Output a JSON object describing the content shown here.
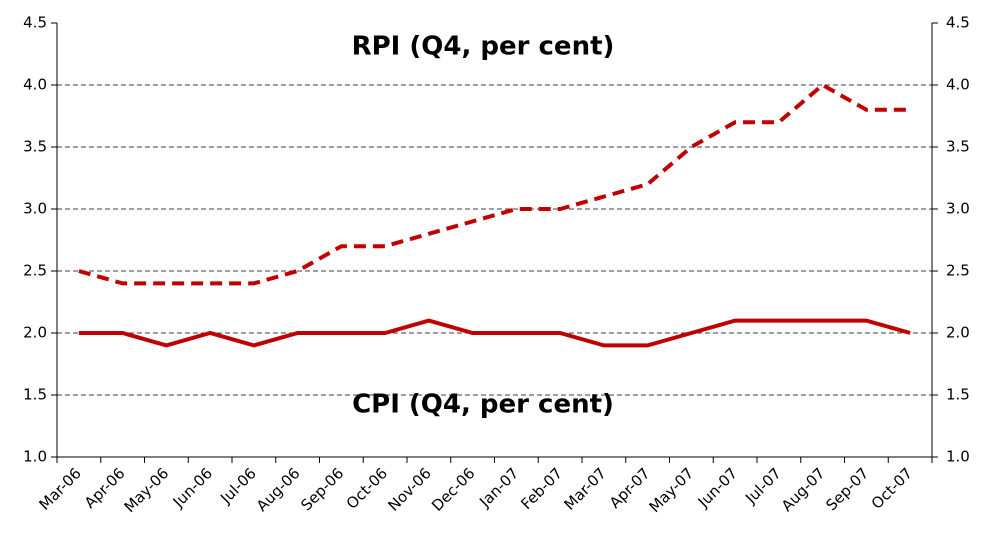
{
  "chart_data": {
    "type": "line",
    "annotations": [
      "RPI (Q4, per cent)",
      "CPI (Q4, per cent)"
    ],
    "categories": [
      "Mar-06",
      "Apr-06",
      "May-06",
      "Jun-06",
      "Jul-06",
      "Aug-06",
      "Sep-06",
      "Oct-06",
      "Nov-06",
      "Dec-06",
      "Jan-07",
      "Feb-07",
      "Mar-07",
      "Apr-07",
      "May-07",
      "Jun-07",
      "Jul-07",
      "Aug-07",
      "Sep-07",
      "Oct-07"
    ],
    "series": [
      {
        "color": "#c00000",
        "dashed": true,
        "values": [
          2.5,
          2.4,
          2.4,
          2.4,
          2.4,
          2.5,
          2.7,
          2.7,
          2.8,
          2.9,
          3.0,
          3.0,
          3.1,
          3.2,
          3.5,
          3.7,
          3.7,
          4.0,
          3.8,
          3.8
        ]
      },
      {
        "color": "#c00000",
        "dashed": false,
        "values": [
          2.0,
          2.0,
          1.9,
          2.0,
          1.9,
          2.0,
          2.0,
          2.0,
          2.1,
          2.0,
          2.0,
          2.0,
          1.9,
          1.9,
          2.0,
          2.1,
          2.1,
          2.1,
          2.1,
          2.0
        ]
      }
    ],
    "ylim": [
      1,
      4.5
    ],
    "yticks": [
      {
        "value": 1,
        "label": "1.0"
      },
      {
        "value": 1.5,
        "label": "1.5"
      },
      {
        "value": 2,
        "label": "2.0"
      },
      {
        "value": 2.5,
        "label": "2.5"
      },
      {
        "value": 3,
        "label": "3.0"
      },
      {
        "value": 3.5,
        "label": "3.5"
      },
      {
        "value": 4,
        "label": "4.0"
      },
      {
        "value": 4.5,
        "label": "4.5"
      }
    ],
    "y2lim": [
      1,
      4.5
    ],
    "y2ticks": [
      {
        "value": 1,
        "label": "1.0"
      },
      {
        "value": 1.5,
        "label": "1.5"
      },
      {
        "value": 2,
        "label": "2.0"
      },
      {
        "value": 2.5,
        "label": "2.5"
      },
      {
        "value": 3,
        "label": "3.0"
      },
      {
        "value": 3.5,
        "label": "3.5"
      },
      {
        "value": 4,
        "label": "4.0"
      },
      {
        "value": 4.5,
        "label": "4.5"
      }
    ],
    "grid": true
  }
}
